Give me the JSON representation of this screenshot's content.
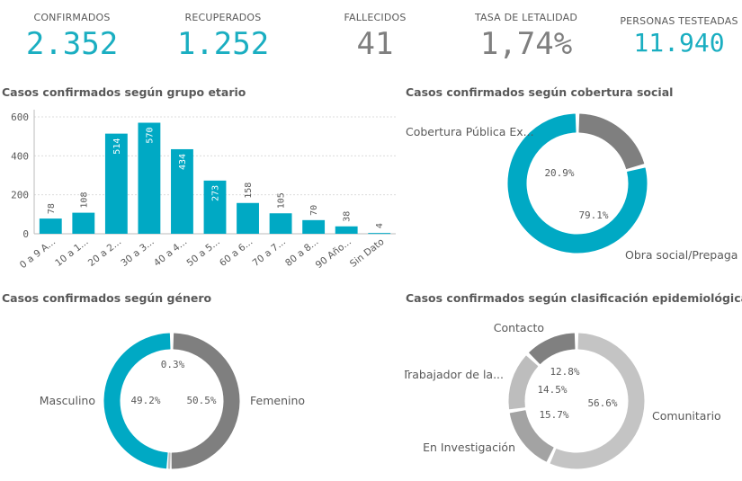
{
  "kpis": [
    {
      "label": "CONFIRMADOS",
      "value": "2.352",
      "color": "#1aaec1"
    },
    {
      "label": "RECUPERADOS",
      "value": "1.252",
      "color": "#1aaec1"
    },
    {
      "label": "FALLECIDOS",
      "value": "41",
      "color": "#7f7f7f"
    },
    {
      "label": "TASA DE LETALIDAD",
      "value": "1,74%",
      "color": "#7f7f7f"
    },
    {
      "label": "PERSONAS TESTEADAS",
      "value": "11.940",
      "color": "#1aaec1"
    }
  ],
  "titles": {
    "age": "Casos confirmados según grupo etario",
    "coverage": "Casos confirmados según cobertura social",
    "gender": "Casos confirmados según género",
    "epi": "Casos confirmados según clasificación epidemiológica"
  },
  "colors": {
    "teal": "#00a9c4",
    "gray_dark": "#7f7f7f",
    "gray_mid": "#a6a6a6",
    "gray_light": "#bfbfbf"
  },
  "chart_data": [
    {
      "type": "bar",
      "title": "Casos confirmados según grupo etario",
      "categories": [
        "0 a 9 A...",
        "10 a 1...",
        "20 a 2...",
        "30 a 3...",
        "40 a 4...",
        "50 a 5...",
        "60 a 6...",
        "70 a 7...",
        "80 a 8...",
        "90 Año...",
        "Sin Dato"
      ],
      "values": [
        78,
        108,
        514,
        570,
        434,
        273,
        158,
        105,
        70,
        38,
        4
      ],
      "ylim": [
        0,
        600
      ],
      "yticks": [
        0,
        200,
        400,
        600
      ],
      "grid": true
    },
    {
      "type": "pie",
      "title": "Casos confirmados según cobertura social",
      "slices": [
        {
          "label": "Cobertura Pública Ex...",
          "value": 20.9,
          "pct_label": "20.9%",
          "color": "#7f7f7f"
        },
        {
          "label": "Obra social/Prepaga",
          "value": 79.1,
          "pct_label": "79.1%",
          "color": "#00a9c4"
        }
      ]
    },
    {
      "type": "pie",
      "title": "Casos confirmados según género",
      "slices": [
        {
          "label": "Femenino",
          "value": 50.5,
          "pct_label": "50.5%",
          "color": "#7f7f7f"
        },
        {
          "label": "",
          "value": 0.3,
          "pct_label": "0.3%",
          "color": "#bfbfbf"
        },
        {
          "label": "Masculino",
          "value": 49.2,
          "pct_label": "49.2%",
          "color": "#00a9c4"
        }
      ]
    },
    {
      "type": "pie",
      "title": "Casos confirmados según clasificación epidemiológica",
      "slices": [
        {
          "label": "Comunitario",
          "value": 56.6,
          "pct_label": "56.6%",
          "color": "#c4c4c4"
        },
        {
          "label": "En Investigación",
          "value": 15.7,
          "pct_label": "15.7%",
          "color": "#a3a3a3"
        },
        {
          "label": "Trabajador de la...",
          "value": 14.5,
          "pct_label": "14.5%",
          "color": "#bdbdbd"
        },
        {
          "label": "Contacto",
          "value": 12.8,
          "pct_label": "12.8%",
          "color": "#808080"
        }
      ]
    }
  ]
}
